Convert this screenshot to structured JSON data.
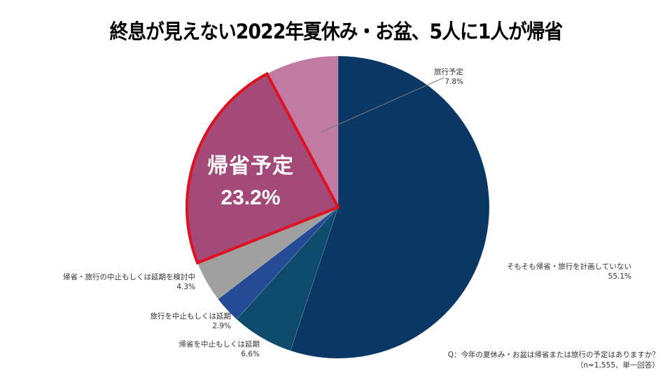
{
  "title": "終息が見えない2022年夏休み・お盆、5人に1人が帰省",
  "chart_data": {
    "type": "pie",
    "title": "終息が見えない2022年夏休み・お盆、5人に1人が帰省",
    "start_angle_deg": 0,
    "direction": "clockwise",
    "slices": [
      {
        "label": "そもそも帰省・旅行を計画していない",
        "value": 55.1,
        "display": "55.1%",
        "color": "#0B3765"
      },
      {
        "label": "帰省を中止もしくは延期",
        "value": 6.6,
        "display": "6.6%",
        "color": "#0D4A6B"
      },
      {
        "label": "旅行を中止もしくは延期",
        "value": 2.9,
        "display": "2.9%",
        "color": "#244B94"
      },
      {
        "label": "帰省・旅行の中止もしくは延期を検討中",
        "value": 4.3,
        "display": "4.3%",
        "color": "#A0A0A0"
      },
      {
        "label": "",
        "value": 0.1,
        "display": "",
        "color": "#BDBDBD"
      },
      {
        "label": "帰省予定",
        "value": 23.2,
        "display": "23.2%",
        "color": "#A34A78",
        "highlight_outline": "#E01020"
      },
      {
        "label": "旅行予定",
        "value": 7.8,
        "display": "7.8%",
        "color": "#C17BA3"
      }
    ],
    "annotation_question": "Q：今年の夏休み・お盆は帰省または旅行の予定はありますか？",
    "annotation_sample": "（n=1,555、単一回答）"
  },
  "labels": {
    "not_planned": {
      "name": "そもそも帰省・旅行を計画していない",
      "pct": "55.1%"
    },
    "homecoming_cancel": {
      "name": "帰省を中止もしくは延期",
      "pct": "6.6%"
    },
    "travel_cancel": {
      "name": "旅行を中止もしくは延期",
      "pct": "2.9%"
    },
    "considering": {
      "name": "帰省・旅行の中止もしくは延期を検討中",
      "pct": "4.3%"
    },
    "homecoming_plan": {
      "name": "帰省予定",
      "pct": "23.2%"
    },
    "travel_plan": {
      "name": "旅行予定",
      "pct": "7.8%"
    }
  },
  "note": {
    "question": "Q：今年の夏休み・お盆は帰省または旅行の予定はありますか？",
    "sample": "（n=1,555、単一回答）"
  }
}
